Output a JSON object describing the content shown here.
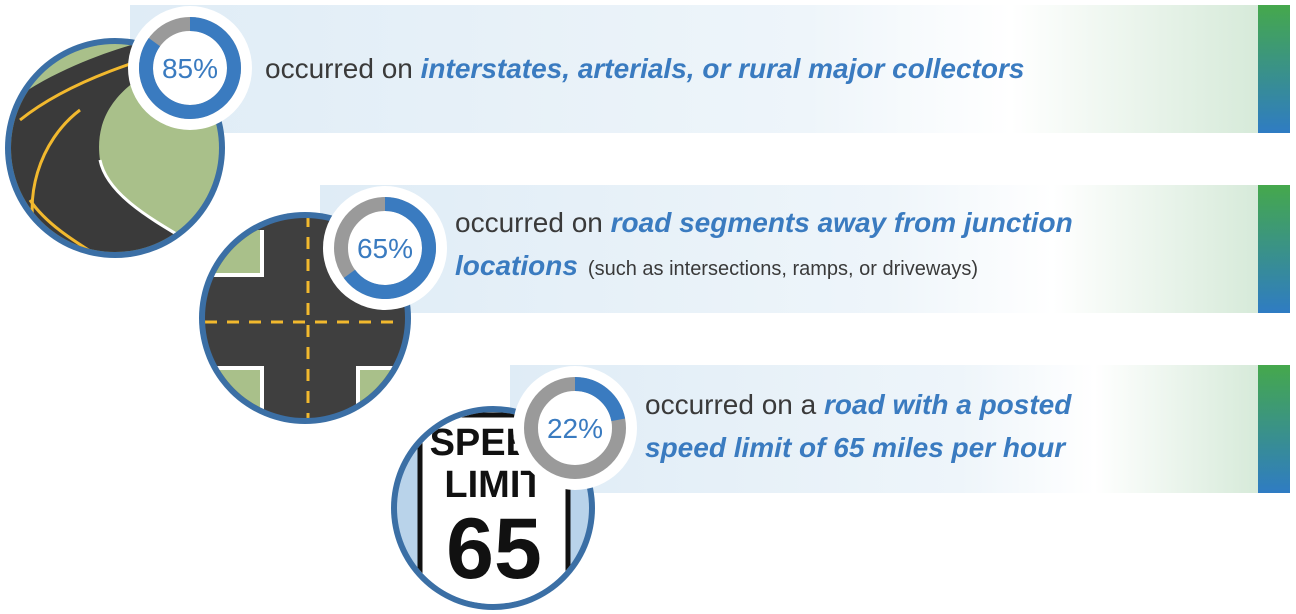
{
  "items": [
    {
      "percent": {
        "value": 85,
        "label": "85%"
      },
      "lines": [
        [
          {
            "text": "occurred on ",
            "style": "plain"
          },
          {
            "text": "interstates, arterials, or rural major collectors",
            "style": "emph"
          }
        ]
      ]
    },
    {
      "percent": {
        "value": 65,
        "label": "65%"
      },
      "lines": [
        [
          {
            "text": "occurred on ",
            "style": "plain"
          },
          {
            "text": "road segments away from junction",
            "style": "emph"
          }
        ],
        [
          {
            "text": "locations",
            "style": "emph"
          },
          {
            "text": "(such as intersections, ramps, or driveways)",
            "style": "note"
          }
        ]
      ]
    },
    {
      "percent": {
        "value": 22,
        "label": "22%"
      },
      "lines": [
        [
          {
            "text": "occurred on a ",
            "style": "plain"
          },
          {
            "text": "road with a posted",
            "style": "emph"
          }
        ],
        [
          {
            "text": "speed limit of 65 miles per hour",
            "style": "emph"
          }
        ]
      ]
    }
  ],
  "sign": {
    "line1": "SPEED",
    "line2": "LIMIT",
    "number": "65"
  }
}
